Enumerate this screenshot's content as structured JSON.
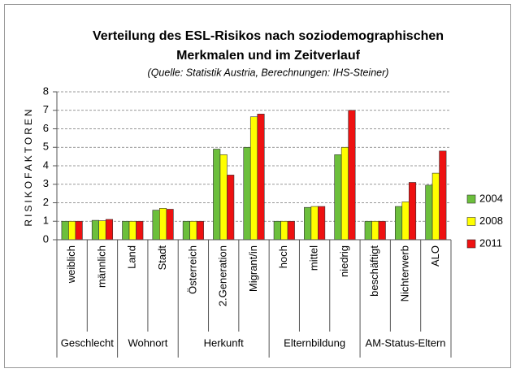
{
  "chart_data": {
    "type": "bar",
    "title": [
      "Verteilung des ESL-Risikos nach soziodemographischen",
      "Merkmalen und im Zeitverlauf"
    ],
    "subtitle": "(Quelle: Statistik Austria, Berechnungen: IHS-Steiner)",
    "y_label": "RISIKOFAKTOREN",
    "categories": [
      "weiblich",
      "männlich",
      "Land",
      "Stadt",
      "Österreich",
      "2.Generation",
      "Migrant/in",
      "hoch",
      "mittel",
      "niedrig",
      "beschäftigt",
      "Nichterwerb",
      "ALO"
    ],
    "category_groups": [
      {
        "label": "Geschlecht",
        "span": 2
      },
      {
        "label": "Wohnort",
        "span": 2
      },
      {
        "label": "Herkunft",
        "span": 3
      },
      {
        "label": "Elternbildung",
        "span": 3
      },
      {
        "label": "AM-Status-Eltern",
        "span": 3
      }
    ],
    "series": [
      {
        "name": "2004",
        "color": "#6cbf3c",
        "values": [
          1,
          1.05,
          1,
          1.6,
          1,
          4.9,
          5.0,
          1,
          1.75,
          4.6,
          1,
          1.8,
          2.95
        ]
      },
      {
        "name": "2008",
        "color": "#ffff00",
        "values": [
          1,
          1.03,
          1,
          1.7,
          1,
          4.6,
          6.65,
          1,
          1.8,
          5.0,
          1,
          2.05,
          3.6
        ]
      },
      {
        "name": "2011",
        "color": "#ee1111",
        "values": [
          1,
          1.1,
          1,
          1.65,
          1,
          3.5,
          6.8,
          1,
          1.8,
          7.0,
          1,
          3.1,
          4.8
        ]
      }
    ],
    "ylim": [
      0,
      8
    ],
    "yticks": [
      0,
      1,
      2,
      3,
      4,
      5,
      6,
      7,
      8
    ],
    "grid": true,
    "legend": "right"
  }
}
